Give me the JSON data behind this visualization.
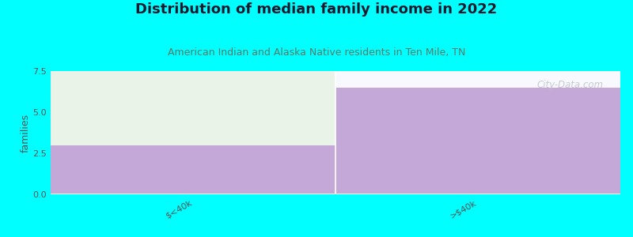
{
  "title": "Distribution of median family income in 2022",
  "subtitle": "American Indian and Alaska Native residents in Ten Mile, TN",
  "categories": [
    "$<40k",
    ">$40k"
  ],
  "values": [
    3.0,
    6.5
  ],
  "bar_color": "#c4a8d8",
  "fill_color_left": "#eaf3e8",
  "background_color": "#00ffff",
  "plot_bg_color": "#f0f0f0",
  "ylabel": "families",
  "ylim": [
    0,
    7.5
  ],
  "yticks": [
    0,
    2.5,
    5,
    7.5
  ],
  "watermark": "City-Data.com",
  "title_color": "#1a1a2e",
  "subtitle_color": "#5a7a6a",
  "watermark_color": "#c0c0c8"
}
